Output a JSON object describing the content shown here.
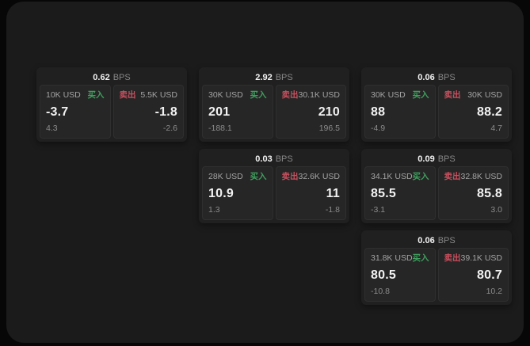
{
  "labels": {
    "bps_unit": "BPS",
    "buy": "买入",
    "sell": "卖出"
  },
  "colors": {
    "page_bg": "#070707",
    "panel_bg": "#1b1b1b",
    "card_bg": "#202020",
    "tile_bg": "#262626",
    "buy_green": "#3f9f5e",
    "sell_red": "#c94f5e"
  },
  "cards": [
    {
      "row": 0,
      "col": 0,
      "bps": "0.62",
      "buy": {
        "amount": "10K USD",
        "value": "-3.7",
        "sub": "4.3"
      },
      "sell": {
        "amount": "5.5K USD",
        "value": "-1.8",
        "sub": "-2.6"
      }
    },
    {
      "row": 0,
      "col": 1,
      "bps": "2.92",
      "buy": {
        "amount": "30K USD",
        "value": "201",
        "sub": "-188.1"
      },
      "sell": {
        "amount": "30.1K USD",
        "value": "210",
        "sub": "196.5"
      }
    },
    {
      "row": 0,
      "col": 2,
      "bps": "0.06",
      "buy": {
        "amount": "30K USD",
        "value": "88",
        "sub": "-4.9"
      },
      "sell": {
        "amount": "30K USD",
        "value": "88.2",
        "sub": "4.7"
      }
    },
    {
      "row": 1,
      "col": 1,
      "bps": "0.03",
      "buy": {
        "amount": "28K USD",
        "value": "10.9",
        "sub": "1.3"
      },
      "sell": {
        "amount": "32.6K USD",
        "value": "11",
        "sub": "-1.8"
      }
    },
    {
      "row": 1,
      "col": 2,
      "bps": "0.09",
      "buy": {
        "amount": "34.1K USD",
        "value": "85.5",
        "sub": "-3.1"
      },
      "sell": {
        "amount": "32.8K USD",
        "value": "85.8",
        "sub": "3.0"
      }
    },
    {
      "row": 2,
      "col": 2,
      "bps": "0.06",
      "buy": {
        "amount": "31.8K USD",
        "value": "80.5",
        "sub": "-10.8"
      },
      "sell": {
        "amount": "39.1K USD",
        "value": "80.7",
        "sub": "10.2"
      }
    }
  ]
}
